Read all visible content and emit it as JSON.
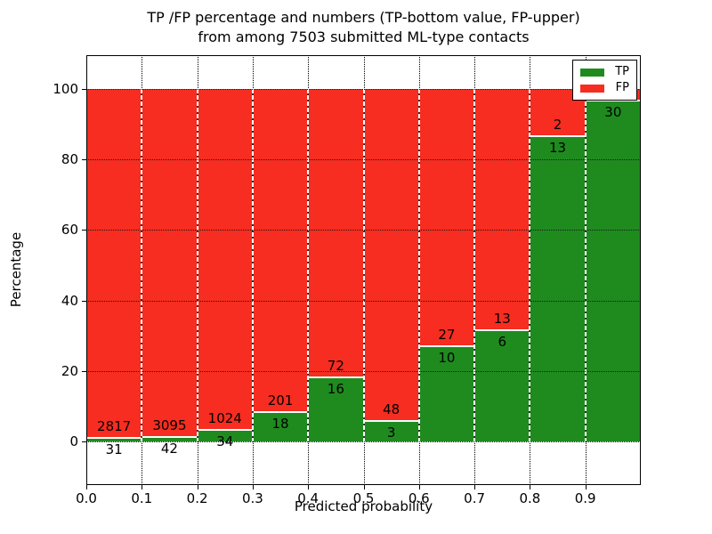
{
  "figure": {
    "title_line1": "TP /FP percentage and numbers (TP-bottom value, FP-upper)",
    "title_line2": "from among 7503 submitted ML-type contacts",
    "xlabel": "Predicted probability",
    "ylabel": "Percentage"
  },
  "legend": {
    "position": "upper right",
    "items": [
      {
        "label": "TP",
        "color": "#1f8b1f"
      },
      {
        "label": "FP",
        "color": "#f62d20"
      }
    ]
  },
  "chart_data": {
    "type": "bar",
    "stacked": true,
    "title": "TP /FP percentage and numbers (TP-bottom value, FP-upper)\nfrom among 7503 submitted ML-type contacts",
    "xlabel": "Predicted probability",
    "ylabel": "Percentage",
    "total_contacts": 7503,
    "xlim": [
      0.0,
      1.0
    ],
    "ylim": [
      -12.4,
      109.6
    ],
    "grid": true,
    "x_tick_labels": [
      "0.0",
      "0.1",
      "0.2",
      "0.3",
      "0.4",
      "0.5",
      "0.6",
      "0.7",
      "0.8",
      "0.9"
    ],
    "y_ticks": [
      0,
      20,
      40,
      60,
      80,
      100
    ],
    "colors": {
      "tp": "#1f8b1f",
      "fp": "#f62d20"
    },
    "series": [
      {
        "name": "TP",
        "values_pct_note": "green bottom segment, percent of bin"
      },
      {
        "name": "FP",
        "values_pct_note": "red upper segment, percent of bin"
      }
    ],
    "bins": [
      {
        "range": [
          0.0,
          0.1
        ],
        "tp": 31,
        "fp": 2817,
        "tp_pct": 1.09,
        "fp_label": "2817",
        "tp_label": "31"
      },
      {
        "range": [
          0.1,
          0.2
        ],
        "tp": 42,
        "fp": 3095,
        "tp_pct": 1.34,
        "fp_label": "3095",
        "tp_label": "42"
      },
      {
        "range": [
          0.2,
          0.3
        ],
        "tp": 34,
        "fp": 1024,
        "tp_pct": 3.21,
        "fp_label": "1024",
        "tp_label": "34"
      },
      {
        "range": [
          0.3,
          0.4
        ],
        "tp": 18,
        "fp": 201,
        "tp_pct": 8.22,
        "fp_label": "201",
        "tp_label": "18"
      },
      {
        "range": [
          0.4,
          0.5
        ],
        "tp": 16,
        "fp": 72,
        "tp_pct": 18.18,
        "fp_label": "72",
        "tp_label": "16"
      },
      {
        "range": [
          0.5,
          0.6
        ],
        "tp": 3,
        "fp": 48,
        "tp_pct": 5.88,
        "fp_label": "48",
        "tp_label": "3"
      },
      {
        "range": [
          0.6,
          0.7
        ],
        "tp": 10,
        "fp": 27,
        "tp_pct": 27.03,
        "fp_label": "27",
        "tp_label": "10"
      },
      {
        "range": [
          0.7,
          0.8
        ],
        "tp": 6,
        "fp": 13,
        "tp_pct": 31.58,
        "fp_label": "13",
        "tp_label": "6"
      },
      {
        "range": [
          0.8,
          0.9
        ],
        "tp": 13,
        "fp": 2,
        "tp_pct": 86.67,
        "fp_label": "2",
        "tp_label": "13"
      },
      {
        "range": [
          0.9,
          1.0
        ],
        "tp": 30,
        "fp": 1,
        "tp_pct": 96.77,
        "fp_label": "",
        "tp_label": "30",
        "fp_label_hidden_behind_legend": true
      }
    ]
  }
}
